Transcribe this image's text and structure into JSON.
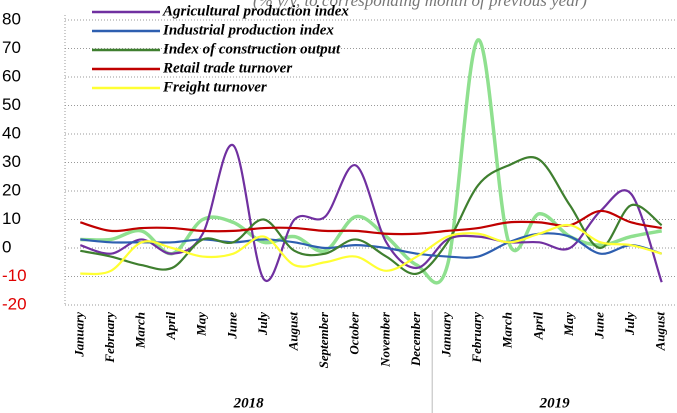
{
  "chart_data": {
    "type": "line",
    "subtitle": "(% y/y, to corresponding month of previous year)",
    "categories": [
      "January",
      "February",
      "March",
      "April",
      "May",
      "June",
      "July",
      "August",
      "September",
      "October",
      "November",
      "December",
      "January",
      "February",
      "March",
      "April",
      "May",
      "June",
      "July",
      "August"
    ],
    "year_groups": [
      {
        "label": "2018",
        "months": 12
      },
      {
        "label": "2019",
        "months": 8
      }
    ],
    "series": [
      {
        "name": "Agricultural production index",
        "color": "#7030a0",
        "values": [
          1,
          -2,
          3,
          -2,
          5,
          36,
          -11,
          10,
          11,
          29,
          2,
          -7,
          3,
          4,
          2,
          2,
          0,
          13,
          19,
          -12
        ]
      },
      {
        "name": "Industrial production index",
        "color": "#2e5fb0",
        "values": [
          3,
          2,
          2,
          2,
          3,
          2,
          3,
          2,
          0,
          1,
          0,
          -2,
          -3,
          -3,
          2,
          5,
          4,
          -2,
          1,
          -2
        ]
      },
      {
        "name": "Index of construction output",
        "color": "#3f7f2f",
        "values": [
          -1,
          -3,
          -6,
          -7,
          3,
          2,
          10,
          -1,
          -2,
          3,
          -3,
          -9,
          2,
          22,
          29,
          31,
          15,
          0,
          15,
          8
        ]
      },
      {
        "name": "Retail trade turnover",
        "color": "#c00000",
        "values": [
          9,
          6,
          7,
          7,
          6,
          6,
          7,
          7,
          6,
          6,
          5,
          5,
          6,
          7,
          9,
          9,
          8,
          13,
          9,
          7
        ]
      },
      {
        "name": "Freight turnover",
        "color": "#ffff33",
        "values": [
          -9,
          -8,
          2,
          0,
          -3,
          -2,
          4,
          -6,
          -5,
          -3,
          -8,
          -3,
          4,
          5,
          2,
          5,
          8,
          2,
          1,
          -2
        ]
      },
      {
        "color": "#8fe08f",
        "values": [
          3,
          3,
          6,
          -2,
          10,
          9,
          2,
          4,
          -1,
          11,
          4,
          -6,
          -6,
          73,
          2,
          12,
          4,
          1,
          4,
          6
        ]
      }
    ],
    "ylim": [
      -20,
      80
    ],
    "yticks": [
      -20,
      -10,
      0,
      10,
      20,
      30,
      40,
      50,
      60,
      70,
      80
    ],
    "negative_tick_color": "#e00000",
    "grid": true,
    "legend": "top-left"
  }
}
